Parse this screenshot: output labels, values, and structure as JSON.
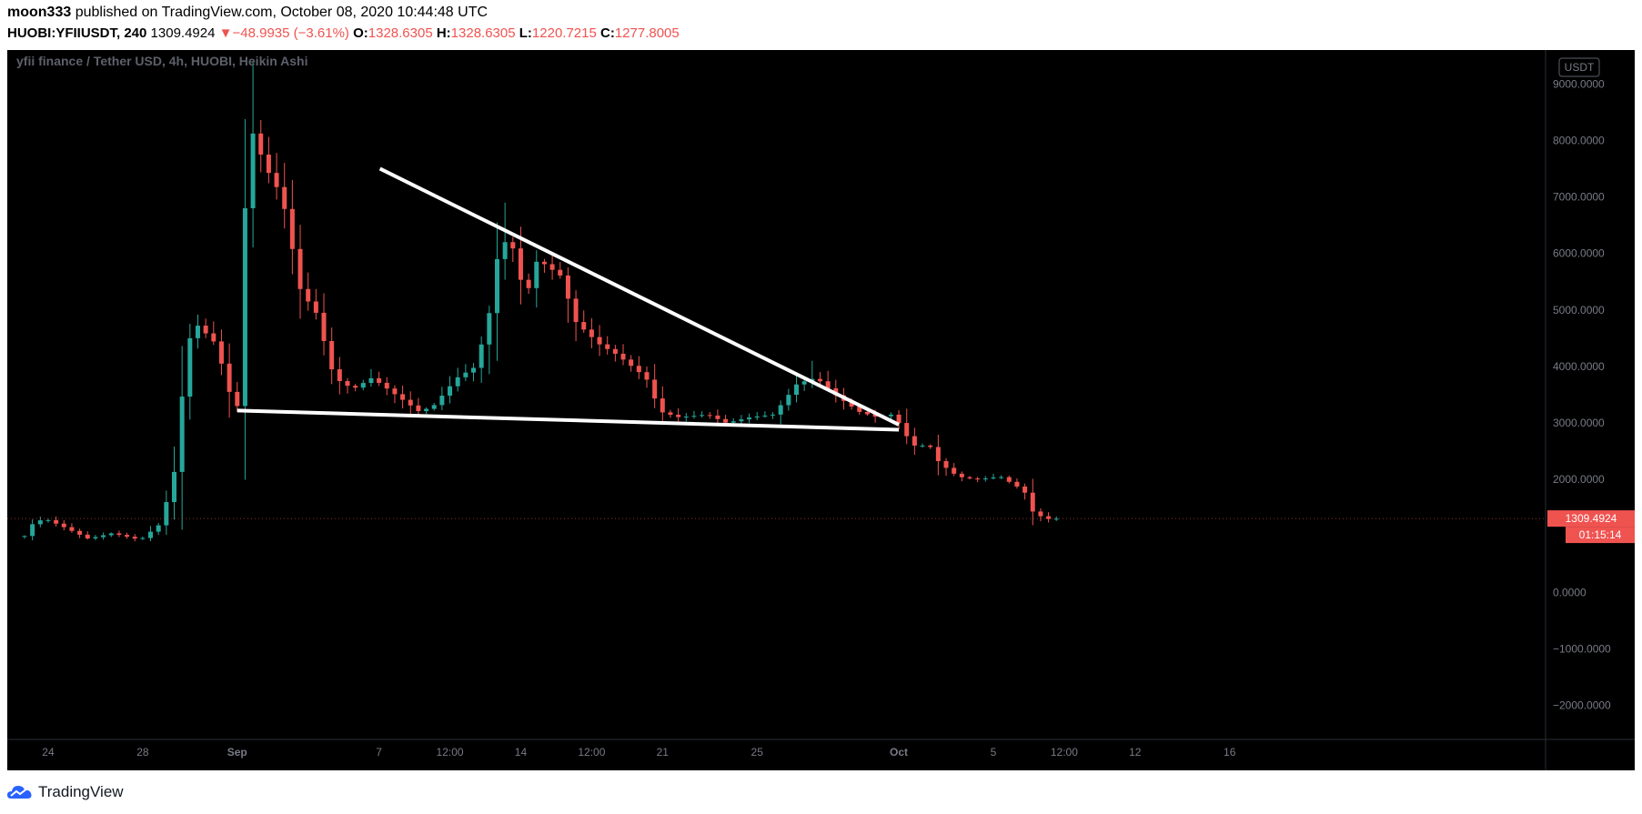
{
  "header": {
    "author": "moon333",
    "published_text": "published on TradingView.com, October 08, 2020 10:44:48 UTC",
    "symbol": "HUOBI:YFIIUSDT, 240",
    "last": "1309.4924",
    "change_arrow": "▼",
    "change": "−48.9935 (−3.61%)",
    "o_label": "O:",
    "o": "1328.6305",
    "h_label": "H:",
    "h": "1328.6305",
    "l_label": "L:",
    "l": "1220.7215",
    "c_label": "C:",
    "c": "1277.8005"
  },
  "footer": {
    "brand": "TradingView"
  },
  "colors": {
    "background": "#000000",
    "up": "#26a69a",
    "down": "#ef5350",
    "trendline": "#ffffff",
    "header_red": "#ef5350"
  },
  "chart_data": {
    "type": "candlestick",
    "title": "yfii finance / Tether USD, 4h, HUOBI, Heikin Ashi",
    "currency_badge": "USDT",
    "ylim": [
      -2600,
      9600
    ],
    "y_ticks": [
      {
        "value": 9000,
        "label": "9000.0000"
      },
      {
        "value": 8000,
        "label": "8000.0000"
      },
      {
        "value": 7000,
        "label": "7000.0000"
      },
      {
        "value": 6000,
        "label": "6000.0000"
      },
      {
        "value": 5000,
        "label": "5000.0000"
      },
      {
        "value": 4000,
        "label": "4000.0000"
      },
      {
        "value": 3000,
        "label": "3000.0000"
      },
      {
        "value": 2000,
        "label": "2000.0000"
      },
      {
        "value": 0,
        "label": "0.0000"
      },
      {
        "value": -1000,
        "label": "−1000.0000"
      },
      {
        "value": -2000,
        "label": "−2000.0000"
      }
    ],
    "x_range_days": [
      0,
      26
    ],
    "x_ticks": [
      {
        "day": 0.65,
        "label": "24",
        "bold": false
      },
      {
        "day": 2.65,
        "label": "28",
        "bold": false
      },
      {
        "day": 4.65,
        "label": "Sep",
        "bold": true
      },
      {
        "day": 7.65,
        "label": "7",
        "bold": false
      },
      {
        "day": 9.15,
        "label": "12:00",
        "bold": false
      },
      {
        "day": 10.65,
        "label": "14",
        "bold": false
      },
      {
        "day": 12.15,
        "label": "12:00",
        "bold": false
      },
      {
        "day": 13.65,
        "label": "21",
        "bold": false
      },
      {
        "day": 15.65,
        "label": "25",
        "bold": false
      },
      {
        "day": 18.65,
        "label": "Oct",
        "bold": true
      },
      {
        "day": 20.65,
        "label": "5",
        "bold": false
      },
      {
        "day": 22.15,
        "label": "12:00",
        "bold": false
      },
      {
        "day": 23.65,
        "label": "12",
        "bold": false
      },
      {
        "day": 25.65,
        "label": "16",
        "bold": false
      }
    ],
    "price_path": [
      {
        "day": 0.15,
        "price": 1000
      },
      {
        "day": 0.35,
        "price": 1250
      },
      {
        "day": 0.6,
        "price": 1300
      },
      {
        "day": 1.0,
        "price": 1150
      },
      {
        "day": 1.5,
        "price": 950
      },
      {
        "day": 2.0,
        "price": 1050
      },
      {
        "day": 2.6,
        "price": 930
      },
      {
        "day": 3.0,
        "price": 1200
      },
      {
        "day": 3.3,
        "price": 2000
      },
      {
        "day": 3.5,
        "price": 3600
      },
      {
        "day": 3.7,
        "price": 4800
      },
      {
        "day": 3.85,
        "price": 4700
      },
      {
        "day": 4.2,
        "price": 4400
      },
      {
        "day": 4.5,
        "price": 3500
      },
      {
        "day": 4.65,
        "price": 3300
      },
      {
        "day": 4.85,
        "price": 7500
      },
      {
        "day": 5.0,
        "price": 8200
      },
      {
        "day": 5.2,
        "price": 7600
      },
      {
        "day": 5.6,
        "price": 7000
      },
      {
        "day": 6.0,
        "price": 5300
      },
      {
        "day": 6.3,
        "price": 5000
      },
      {
        "day": 6.7,
        "price": 3800
      },
      {
        "day": 7.1,
        "price": 3600
      },
      {
        "day": 7.5,
        "price": 3800
      },
      {
        "day": 8.0,
        "price": 3500
      },
      {
        "day": 8.5,
        "price": 3200
      },
      {
        "day": 8.8,
        "price": 3300
      },
      {
        "day": 9.3,
        "price": 3800
      },
      {
        "day": 9.7,
        "price": 4000
      },
      {
        "day": 10.0,
        "price": 5000
      },
      {
        "day": 10.2,
        "price": 6200
      },
      {
        "day": 10.45,
        "price": 6200
      },
      {
        "day": 10.75,
        "price": 5200
      },
      {
        "day": 11.0,
        "price": 5900
      },
      {
        "day": 11.5,
        "price": 5600
      },
      {
        "day": 11.8,
        "price": 4800
      },
      {
        "day": 12.3,
        "price": 4400
      },
      {
        "day": 12.7,
        "price": 4200
      },
      {
        "day": 13.3,
        "price": 3800
      },
      {
        "day": 13.6,
        "price": 3200
      },
      {
        "day": 14.0,
        "price": 3100
      },
      {
        "day": 14.6,
        "price": 3150
      },
      {
        "day": 15.0,
        "price": 3000
      },
      {
        "day": 15.5,
        "price": 3100
      },
      {
        "day": 16.0,
        "price": 3150
      },
      {
        "day": 16.5,
        "price": 3700
      },
      {
        "day": 16.9,
        "price": 3800
      },
      {
        "day": 17.3,
        "price": 3500
      },
      {
        "day": 17.8,
        "price": 3200
      },
      {
        "day": 18.2,
        "price": 3100
      },
      {
        "day": 18.5,
        "price": 3150
      },
      {
        "day": 18.75,
        "price": 2900
      },
      {
        "day": 18.9,
        "price": 2600
      },
      {
        "day": 19.3,
        "price": 2600
      },
      {
        "day": 19.5,
        "price": 2300
      },
      {
        "day": 19.9,
        "price": 2050
      },
      {
        "day": 20.3,
        "price": 2000
      },
      {
        "day": 20.8,
        "price": 2050
      },
      {
        "day": 21.3,
        "price": 1800
      },
      {
        "day": 21.5,
        "price": 1400
      },
      {
        "day": 21.8,
        "price": 1300
      },
      {
        "day": 22.1,
        "price": 1310
      }
    ],
    "volatility_spikes": [
      {
        "day": 4.95,
        "high": 9400
      },
      {
        "day": 10.35,
        "high": 6900
      },
      {
        "day": 16.8,
        "high": 4100
      }
    ],
    "trendlines": [
      {
        "from": {
          "day": 7.67,
          "price": 7500
        },
        "to": {
          "day": 18.65,
          "price": 2970
        }
      },
      {
        "from": {
          "day": 4.65,
          "price": 3220
        },
        "to": {
          "day": 18.65,
          "price": 2880
        }
      }
    ],
    "price_label": {
      "value": 1309.4924,
      "text": "1309.4924",
      "countdown": "01:15:14"
    }
  }
}
